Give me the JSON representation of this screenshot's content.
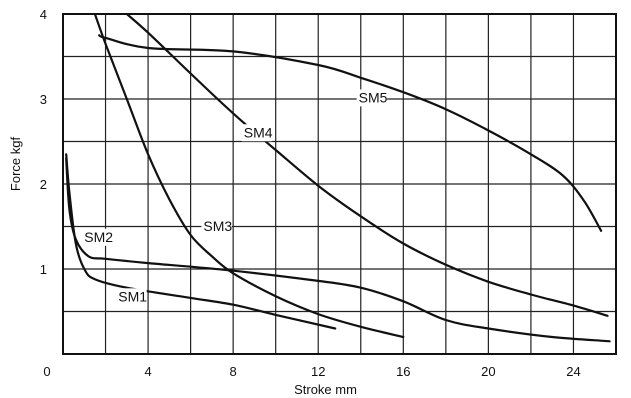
{
  "chart_data": {
    "type": "line",
    "title": "",
    "xlabel": "Stroke mm",
    "ylabel": "Force kgf",
    "xlim": [
      0,
      26
    ],
    "ylim": [
      0,
      4
    ],
    "x_ticks": [
      0,
      4,
      8,
      12,
      16,
      20,
      24
    ],
    "y_ticks": [
      1,
      2,
      3,
      4
    ],
    "x_tick_labels": [
      "0",
      "4",
      "8",
      "12",
      "16",
      "20",
      "24"
    ],
    "y_tick_labels": [
      "1",
      "2",
      "3",
      "4"
    ],
    "grid": true,
    "grid_x_step": 2,
    "grid_y_step": 0.5,
    "series": [
      {
        "name": "SM1",
        "label_at": [
          2.6,
          0.62
        ],
        "points": [
          [
            0.15,
            2.35
          ],
          [
            0.3,
            1.9
          ],
          [
            0.6,
            1.3
          ],
          [
            1.0,
            1.0
          ],
          [
            1.5,
            0.88
          ],
          [
            3,
            0.78
          ],
          [
            6,
            0.66
          ],
          [
            8,
            0.58
          ],
          [
            10,
            0.46
          ],
          [
            12.8,
            0.3
          ]
        ]
      },
      {
        "name": "SM2",
        "label_at": [
          1.0,
          1.32
        ],
        "points": [
          [
            0.15,
            2.3
          ],
          [
            0.3,
            1.7
          ],
          [
            0.6,
            1.35
          ],
          [
            1.2,
            1.15
          ],
          [
            2,
            1.12
          ],
          [
            4,
            1.07
          ],
          [
            8,
            0.98
          ],
          [
            12,
            0.86
          ],
          [
            14,
            0.78
          ],
          [
            16,
            0.62
          ],
          [
            18,
            0.4
          ],
          [
            20,
            0.3
          ],
          [
            23,
            0.2
          ],
          [
            25.7,
            0.15
          ]
        ]
      },
      {
        "name": "SM3",
        "label_at": [
          6.6,
          1.45
        ],
        "points": [
          [
            1.5,
            4.0
          ],
          [
            2,
            3.65
          ],
          [
            3,
            3.0
          ],
          [
            4,
            2.35
          ],
          [
            5,
            1.82
          ],
          [
            6,
            1.4
          ],
          [
            7,
            1.15
          ],
          [
            8,
            0.95
          ],
          [
            10,
            0.68
          ],
          [
            12,
            0.47
          ],
          [
            14,
            0.32
          ],
          [
            16,
            0.2
          ]
        ]
      },
      {
        "name": "SM4",
        "label_at": [
          8.5,
          2.55
        ],
        "points": [
          [
            3.0,
            4.0
          ],
          [
            4,
            3.78
          ],
          [
            6,
            3.3
          ],
          [
            8,
            2.83
          ],
          [
            10,
            2.4
          ],
          [
            12,
            1.98
          ],
          [
            14,
            1.62
          ],
          [
            16,
            1.3
          ],
          [
            18,
            1.05
          ],
          [
            20,
            0.85
          ],
          [
            22,
            0.7
          ],
          [
            24,
            0.57
          ],
          [
            25.6,
            0.45
          ]
        ]
      },
      {
        "name": "SM5",
        "label_at": [
          13.9,
          2.96
        ],
        "points": [
          [
            1.7,
            3.75
          ],
          [
            2,
            3.72
          ],
          [
            4,
            3.6
          ],
          [
            8,
            3.56
          ],
          [
            12,
            3.4
          ],
          [
            14,
            3.25
          ],
          [
            16,
            3.08
          ],
          [
            18,
            2.88
          ],
          [
            20,
            2.63
          ],
          [
            22,
            2.35
          ],
          [
            23.5,
            2.1
          ],
          [
            24.5,
            1.8
          ],
          [
            25.3,
            1.45
          ]
        ]
      }
    ]
  }
}
